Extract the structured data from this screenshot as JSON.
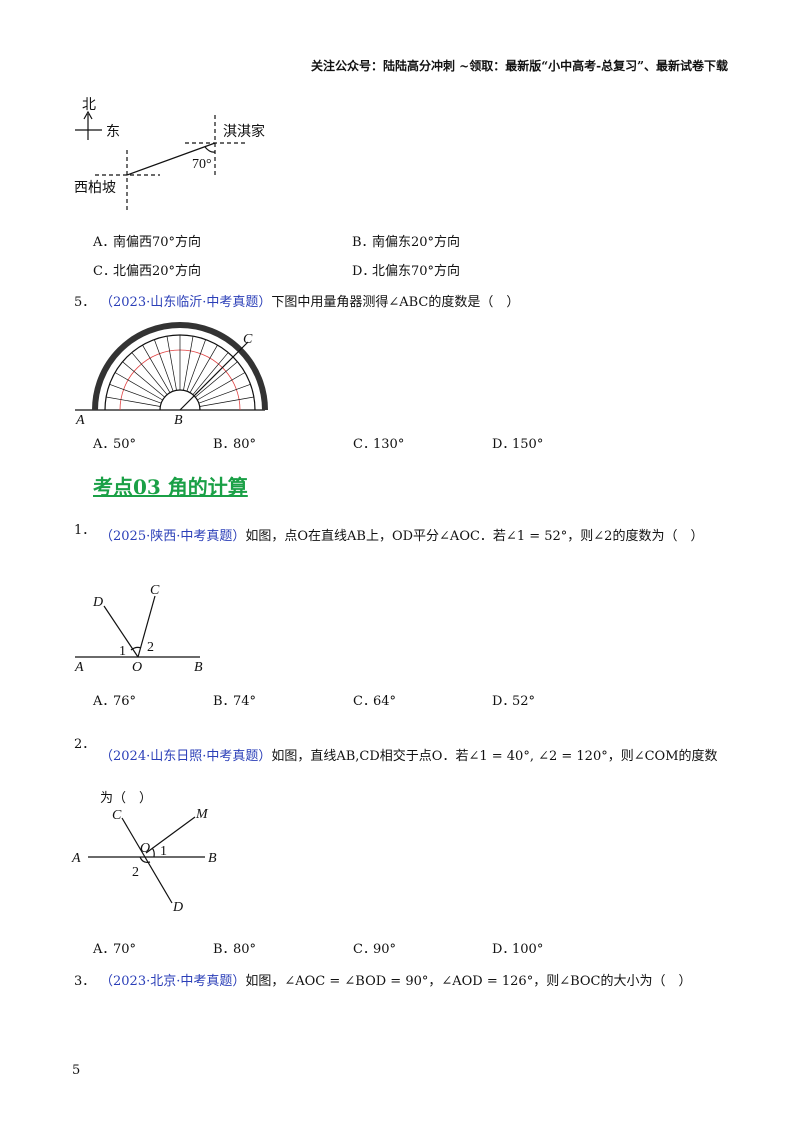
{
  "header": {
    "text": "关注公众号：陆陆高分冲刺 ~领取：最新版“小中高考-总复习”、最新试卷下载"
  },
  "q4": {
    "figure": {
      "north": "北",
      "east": "东",
      "home": "淇淇家",
      "angle": "70°",
      "place": "西柏坡"
    },
    "options": [
      {
        "label": "A．",
        "text": "南偏西70°方向"
      },
      {
        "label": "B．",
        "text": "南偏东20°方向"
      },
      {
        "label": "C．",
        "text": "北偏西20°方向"
      },
      {
        "label": "D．",
        "text": "北偏东70°方向"
      }
    ]
  },
  "q5": {
    "number": "5．",
    "source": "（2023·山东临沂·中考真题）",
    "stem": "下图中用量角器测得∠ABC的度数是（　）",
    "figure": {
      "a": "A",
      "b": "B",
      "c": "C"
    },
    "options": [
      {
        "label": "A．",
        "text": "50°"
      },
      {
        "label": "B．",
        "text": "80°"
      },
      {
        "label": "C．",
        "text": "130°"
      },
      {
        "label": "D．",
        "text": "150°"
      }
    ]
  },
  "section": {
    "title": "考点03  角的计算"
  },
  "s1": {
    "number": "1．",
    "source": "（2025·陕西·中考真题）",
    "stem": "如图，点O在直线AB上，OD平分∠AOC．若∠1 = 52°，则∠2的度数为（　）",
    "figure": {
      "d": "D",
      "c": "C",
      "one": "1",
      "two": "2",
      "a": "A",
      "o": "O",
      "b": "B"
    },
    "options": [
      {
        "label": "A．",
        "text": "76°"
      },
      {
        "label": "B．",
        "text": "74°"
      },
      {
        "label": "C．",
        "text": "64°"
      },
      {
        "label": "D．",
        "text": "52°"
      }
    ]
  },
  "s2": {
    "number": "2．",
    "source": "（2024·山东日照·中考真题）",
    "stem": "如图，直线AB,CD相交于点O．若∠1 = 40°, ∠2 = 120°，则∠COM的度数为（　）",
    "figure": {
      "c": "C",
      "m": "M",
      "o": "O",
      "one": "1",
      "a": "A",
      "b": "B",
      "two": "2",
      "d": "D"
    },
    "options": [
      {
        "label": "A．",
        "text": "70°"
      },
      {
        "label": "B．",
        "text": "80°"
      },
      {
        "label": "C．",
        "text": "90°"
      },
      {
        "label": "D．",
        "text": "100°"
      }
    ]
  },
  "s3": {
    "number": "3．",
    "source": "（2023·北京·中考真题）",
    "stem": "如图，∠AOC = ∠BOD = 90°，∠AOD = 126°，则∠BOC的大小为（　）"
  },
  "footer": {
    "page": "5"
  }
}
